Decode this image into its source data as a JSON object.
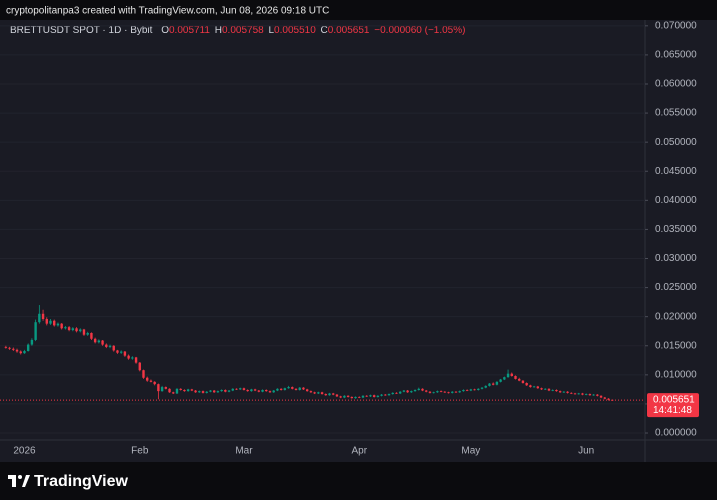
{
  "header": {
    "text": "cryptopolitanpa3 created with TradingView.com, Jun 08, 2026 09:18 UTC"
  },
  "footer": {
    "brand": "TradingView"
  },
  "chart_data": {
    "type": "candlestick",
    "legend": {
      "symbol": "BRETTUSDT SPOT · 1D · Bybit",
      "o": "O",
      "open": "0.005711",
      "h": "H",
      "high": "0.005758",
      "l": "L",
      "low": "0.005510",
      "c": "C",
      "close": "0.005651",
      "change": "−0.000060 (−1.05%)"
    },
    "last_price_label": "0.005651",
    "countdown": "14:41:48",
    "up_color": "#089981",
    "down_color": "#f23645",
    "ylim": [
      -0.0012,
      0.071
    ],
    "yticks": [
      {
        "value": 0,
        "label": "0.000000"
      },
      {
        "value": 0.005,
        "label": "0.005000"
      },
      {
        "value": 0.01,
        "label": "0.010000"
      },
      {
        "value": 0.015,
        "label": "0.015000"
      },
      {
        "value": 0.02,
        "label": "0.020000"
      },
      {
        "value": 0.025,
        "label": "0.025000"
      },
      {
        "value": 0.03,
        "label": "0.030000"
      },
      {
        "value": 0.035,
        "label": "0.035000"
      },
      {
        "value": 0.04,
        "label": "0.040000"
      },
      {
        "value": 0.045,
        "label": "0.045000"
      },
      {
        "value": 0.05,
        "label": "0.050000"
      },
      {
        "value": 0.055,
        "label": "0.055000"
      },
      {
        "value": 0.06,
        "label": "0.060000"
      },
      {
        "value": 0.065,
        "label": "0.065000"
      },
      {
        "value": 0.07,
        "label": "0.070000"
      }
    ],
    "categories": [
      null,
      null,
      null,
      null,
      null,
      "2026",
      null,
      null,
      null,
      null,
      null,
      null,
      null,
      null,
      null,
      null,
      null,
      null,
      null,
      null,
      null,
      null,
      null,
      null,
      null,
      null,
      null,
      null,
      null,
      null,
      null,
      null,
      null,
      null,
      null,
      null,
      "Feb",
      null,
      null,
      null,
      null,
      null,
      null,
      null,
      null,
      null,
      null,
      null,
      null,
      null,
      null,
      null,
      null,
      null,
      null,
      null,
      null,
      null,
      null,
      null,
      null,
      null,
      null,
      null,
      "Mar",
      null,
      null,
      null,
      null,
      null,
      null,
      null,
      null,
      null,
      null,
      null,
      null,
      null,
      null,
      null,
      null,
      null,
      null,
      null,
      null,
      null,
      null,
      null,
      null,
      null,
      null,
      null,
      null,
      null,
      null,
      "Apr",
      null,
      null,
      null,
      null,
      null,
      null,
      null,
      null,
      null,
      null,
      null,
      null,
      null,
      null,
      null,
      null,
      null,
      null,
      null,
      null,
      null,
      null,
      null,
      null,
      null,
      null,
      null,
      null,
      null,
      "May",
      null,
      null,
      null,
      null,
      null,
      null,
      null,
      null,
      null,
      null,
      null,
      null,
      null,
      null,
      null,
      null,
      null,
      null,
      null,
      null,
      null,
      null,
      null,
      null,
      null,
      null,
      null,
      null,
      null,
      null,
      "Jun",
      null,
      null,
      null,
      null,
      null,
      null,
      null
    ],
    "candles": [
      [
        0.0148,
        0.015,
        0.0145,
        0.01465
      ],
      [
        0.01465,
        0.0148,
        0.0143,
        0.01448
      ],
      [
        0.01448,
        0.0147,
        0.0141,
        0.0143
      ],
      [
        0.0143,
        0.0145,
        0.0138,
        0.01402
      ],
      [
        0.01402,
        0.0142,
        0.0135,
        0.01372
      ],
      [
        0.01372,
        0.0143,
        0.0136,
        0.0141
      ],
      [
        0.0141,
        0.0154,
        0.014,
        0.0152
      ],
      [
        0.0152,
        0.0163,
        0.015,
        0.016
      ],
      [
        0.016,
        0.0195,
        0.0158,
        0.01905
      ],
      [
        0.01905,
        0.022,
        0.0188,
        0.0205
      ],
      [
        0.0205,
        0.0212,
        0.0193,
        0.0196
      ],
      [
        0.0196,
        0.0199,
        0.0185,
        0.0188
      ],
      [
        0.0188,
        0.0196,
        0.0186,
        0.0193
      ],
      [
        0.0193,
        0.0195,
        0.0183,
        0.0185
      ],
      [
        0.0185,
        0.019,
        0.0183,
        0.0188
      ],
      [
        0.0188,
        0.0189,
        0.0178,
        0.018
      ],
      [
        0.018,
        0.0184,
        0.0178,
        0.0182
      ],
      [
        0.0182,
        0.0184,
        0.0175,
        0.0177
      ],
      [
        0.0177,
        0.0182,
        0.0175,
        0.018
      ],
      [
        0.018,
        0.0182,
        0.0173,
        0.0175
      ],
      [
        0.0175,
        0.018,
        0.0173,
        0.0178
      ],
      [
        0.0178,
        0.0179,
        0.0167,
        0.0169
      ],
      [
        0.0169,
        0.0174,
        0.0167,
        0.0172
      ],
      [
        0.0172,
        0.0173,
        0.016,
        0.0162
      ],
      [
        0.0162,
        0.0164,
        0.0154,
        0.0156
      ],
      [
        0.0156,
        0.0161,
        0.0154,
        0.0159
      ],
      [
        0.0159,
        0.016,
        0.015,
        0.0152
      ],
      [
        0.0152,
        0.0154,
        0.0146,
        0.0148
      ],
      [
        0.0148,
        0.0152,
        0.0146,
        0.015
      ],
      [
        0.015,
        0.0151,
        0.014,
        0.0142
      ],
      [
        0.0142,
        0.0143,
        0.0136,
        0.0138
      ],
      [
        0.0138,
        0.0142,
        0.0136,
        0.014
      ],
      [
        0.014,
        0.0141,
        0.0131,
        0.0133
      ],
      [
        0.0133,
        0.0135,
        0.0126,
        0.0128
      ],
      [
        0.0128,
        0.0132,
        0.0126,
        0.013
      ],
      [
        0.013,
        0.0131,
        0.0119,
        0.0121
      ],
      [
        0.0121,
        0.0122,
        0.0106,
        0.0108
      ],
      [
        0.0108,
        0.0109,
        0.0093,
        0.0095
      ],
      [
        0.0095,
        0.0097,
        0.0088,
        0.009
      ],
      [
        0.009,
        0.0092,
        0.0087,
        0.0088
      ],
      [
        0.0088,
        0.0089,
        0.0082,
        0.0084
      ],
      [
        0.0084,
        0.0085,
        0.0058,
        0.0072
      ],
      [
        0.0072,
        0.0081,
        0.0071,
        0.0079
      ],
      [
        0.0079,
        0.008,
        0.0075,
        0.0076
      ],
      [
        0.0076,
        0.0077,
        0.0069,
        0.007
      ],
      [
        0.007,
        0.0071,
        0.0067,
        0.0068
      ],
      [
        0.0068,
        0.0077,
        0.0067,
        0.0076
      ],
      [
        0.0076,
        0.0077,
        0.0073,
        0.0074
      ],
      [
        0.0074,
        0.0075,
        0.0071,
        0.0072
      ],
      [
        0.0072,
        0.0076,
        0.0071,
        0.0075
      ],
      [
        0.0075,
        0.0076,
        0.0072,
        0.0073
      ],
      [
        0.0073,
        0.0074,
        0.0069,
        0.007
      ],
      [
        0.007,
        0.0073,
        0.0069,
        0.0072
      ],
      [
        0.0072,
        0.0073,
        0.0068,
        0.0069
      ],
      [
        0.0069,
        0.0072,
        0.0068,
        0.0071
      ],
      [
        0.0071,
        0.0074,
        0.007,
        0.0073
      ],
      [
        0.0073,
        0.0074,
        0.0069,
        0.007
      ],
      [
        0.007,
        0.0073,
        0.0069,
        0.0072
      ],
      [
        0.0072,
        0.0075,
        0.0071,
        0.0074
      ],
      [
        0.0074,
        0.0075,
        0.007,
        0.0071
      ],
      [
        0.0071,
        0.0074,
        0.007,
        0.0073
      ],
      [
        0.0073,
        0.0077,
        0.0072,
        0.0076
      ],
      [
        0.0076,
        0.0077,
        0.0074,
        0.0075
      ],
      [
        0.0075,
        0.0078,
        0.0074,
        0.0077
      ],
      [
        0.0077,
        0.0078,
        0.0073,
        0.0074
      ],
      [
        0.0074,
        0.0075,
        0.0071,
        0.0072
      ],
      [
        0.0072,
        0.0076,
        0.0071,
        0.0075
      ],
      [
        0.0075,
        0.0076,
        0.0072,
        0.0073
      ],
      [
        0.0073,
        0.0074,
        0.007,
        0.0071
      ],
      [
        0.0071,
        0.0075,
        0.007,
        0.0074
      ],
      [
        0.0074,
        0.0075,
        0.0071,
        0.0072
      ],
      [
        0.0072,
        0.0073,
        0.0069,
        0.007
      ],
      [
        0.007,
        0.0074,
        0.0069,
        0.0073
      ],
      [
        0.0073,
        0.0077,
        0.0072,
        0.0076
      ],
      [
        0.0076,
        0.0077,
        0.0073,
        0.0074
      ],
      [
        0.0074,
        0.0078,
        0.0073,
        0.0077
      ],
      [
        0.0077,
        0.0081,
        0.0076,
        0.0079
      ],
      [
        0.0079,
        0.008,
        0.0075,
        0.0076
      ],
      [
        0.0076,
        0.0077,
        0.0073,
        0.0074
      ],
      [
        0.0074,
        0.0079,
        0.0073,
        0.0078
      ],
      [
        0.0078,
        0.0079,
        0.0074,
        0.0075
      ],
      [
        0.0075,
        0.0076,
        0.0071,
        0.0072
      ],
      [
        0.0072,
        0.0073,
        0.0069,
        0.007
      ],
      [
        0.007,
        0.0071,
        0.0067,
        0.0068
      ],
      [
        0.0068,
        0.0071,
        0.0067,
        0.007
      ],
      [
        0.007,
        0.0071,
        0.0066,
        0.0067
      ],
      [
        0.0067,
        0.0068,
        0.0064,
        0.0065
      ],
      [
        0.0065,
        0.0069,
        0.0064,
        0.0068
      ],
      [
        0.0068,
        0.0069,
        0.0065,
        0.0066
      ],
      [
        0.0066,
        0.0067,
        0.0062,
        0.0063
      ],
      [
        0.0063,
        0.0064,
        0.006,
        0.0061
      ],
      [
        0.0061,
        0.0065,
        0.006,
        0.0064
      ],
      [
        0.0064,
        0.0065,
        0.0061,
        0.0062
      ],
      [
        0.0062,
        0.0063,
        0.0059,
        0.006
      ],
      [
        0.006,
        0.0063,
        0.0059,
        0.0062
      ],
      [
        0.0062,
        0.0063,
        0.006,
        0.0061
      ],
      [
        0.0061,
        0.0065,
        0.006,
        0.0064
      ],
      [
        0.0064,
        0.0065,
        0.0062,
        0.0063
      ],
      [
        0.0063,
        0.0066,
        0.0062,
        0.0065
      ],
      [
        0.0065,
        0.0066,
        0.0061,
        0.0062
      ],
      [
        0.0062,
        0.0065,
        0.0061,
        0.0064
      ],
      [
        0.0064,
        0.0067,
        0.0063,
        0.0066
      ],
      [
        0.0066,
        0.0067,
        0.0064,
        0.0065
      ],
      [
        0.0065,
        0.0068,
        0.0064,
        0.0067
      ],
      [
        0.0067,
        0.007,
        0.0066,
        0.0069
      ],
      [
        0.0069,
        0.007,
        0.0067,
        0.0068
      ],
      [
        0.0068,
        0.0072,
        0.0067,
        0.0071
      ],
      [
        0.0071,
        0.0074,
        0.007,
        0.0073
      ],
      [
        0.0073,
        0.0074,
        0.0069,
        0.007
      ],
      [
        0.007,
        0.0073,
        0.0069,
        0.0072
      ],
      [
        0.0072,
        0.0075,
        0.0071,
        0.0074
      ],
      [
        0.0074,
        0.0078,
        0.0073,
        0.0076
      ],
      [
        0.0076,
        0.0077,
        0.0072,
        0.0073
      ],
      [
        0.0073,
        0.0074,
        0.007,
        0.0071
      ],
      [
        0.0071,
        0.0072,
        0.0068,
        0.0069
      ],
      [
        0.0069,
        0.0071,
        0.0068,
        0.007
      ],
      [
        0.007,
        0.0073,
        0.0069,
        0.0072
      ],
      [
        0.0072,
        0.0073,
        0.007,
        0.0071
      ],
      [
        0.0071,
        0.0072,
        0.0069,
        0.007
      ],
      [
        0.007,
        0.0071,
        0.0068,
        0.0069
      ],
      [
        0.0069,
        0.0072,
        0.0068,
        0.0071
      ],
      [
        0.0071,
        0.0072,
        0.0069,
        0.007
      ],
      [
        0.007,
        0.0073,
        0.0069,
        0.0072
      ],
      [
        0.0072,
        0.0075,
        0.0071,
        0.0074
      ],
      [
        0.0074,
        0.0075,
        0.0072,
        0.0073
      ],
      [
        0.0073,
        0.0076,
        0.0072,
        0.0075
      ],
      [
        0.0075,
        0.0076,
        0.0073,
        0.0074
      ],
      [
        0.0074,
        0.0077,
        0.0073,
        0.0076
      ],
      [
        0.0076,
        0.0079,
        0.0075,
        0.0078
      ],
      [
        0.0078,
        0.0082,
        0.0077,
        0.0081
      ],
      [
        0.0081,
        0.0086,
        0.008,
        0.0085
      ],
      [
        0.0085,
        0.0087,
        0.0082,
        0.0083
      ],
      [
        0.0083,
        0.0089,
        0.0082,
        0.0088
      ],
      [
        0.0088,
        0.0093,
        0.0087,
        0.0092
      ],
      [
        0.0092,
        0.0097,
        0.0091,
        0.0096
      ],
      [
        0.0096,
        0.0109,
        0.0095,
        0.0102
      ],
      [
        0.0102,
        0.0104,
        0.0097,
        0.0098
      ],
      [
        0.0098,
        0.0099,
        0.0092,
        0.0093
      ],
      [
        0.0093,
        0.0095,
        0.0089,
        0.009
      ],
      [
        0.009,
        0.0091,
        0.0085,
        0.0086
      ],
      [
        0.0086,
        0.0087,
        0.0081,
        0.0082
      ],
      [
        0.0082,
        0.0083,
        0.0078,
        0.0079
      ],
      [
        0.0079,
        0.0081,
        0.0078,
        0.008
      ],
      [
        0.008,
        0.0081,
        0.0076,
        0.0077
      ],
      [
        0.0077,
        0.0078,
        0.0074,
        0.0075
      ],
      [
        0.0075,
        0.0077,
        0.0074,
        0.0076
      ],
      [
        0.0076,
        0.0077,
        0.0072,
        0.0073
      ],
      [
        0.0073,
        0.0075,
        0.0072,
        0.0074
      ],
      [
        0.0074,
        0.0075,
        0.0071,
        0.0072
      ],
      [
        0.0072,
        0.0073,
        0.0069,
        0.007
      ],
      [
        0.007,
        0.0072,
        0.0069,
        0.0071
      ],
      [
        0.0071,
        0.0072,
        0.0068,
        0.0069
      ],
      [
        0.0069,
        0.007,
        0.0067,
        0.0068
      ],
      [
        0.0068,
        0.0069,
        0.0066,
        0.0067
      ],
      [
        0.0067,
        0.0069,
        0.0066,
        0.0068
      ],
      [
        0.0068,
        0.0069,
        0.0065,
        0.0066
      ],
      [
        0.0066,
        0.0068,
        0.0065,
        0.0067
      ],
      [
        0.0067,
        0.0068,
        0.0064,
        0.0065
      ],
      [
        0.0065,
        0.0067,
        0.0064,
        0.0066
      ],
      [
        0.0066,
        0.0067,
        0.0063,
        0.0064
      ],
      [
        0.0064,
        0.0065,
        0.006,
        0.0061
      ],
      [
        0.0061,
        0.0062,
        0.0058,
        0.0059
      ],
      [
        0.0059,
        0.006,
        0.0056,
        0.00571
      ],
      [
        0.005711,
        0.005758,
        0.00551,
        0.005651
      ]
    ]
  }
}
